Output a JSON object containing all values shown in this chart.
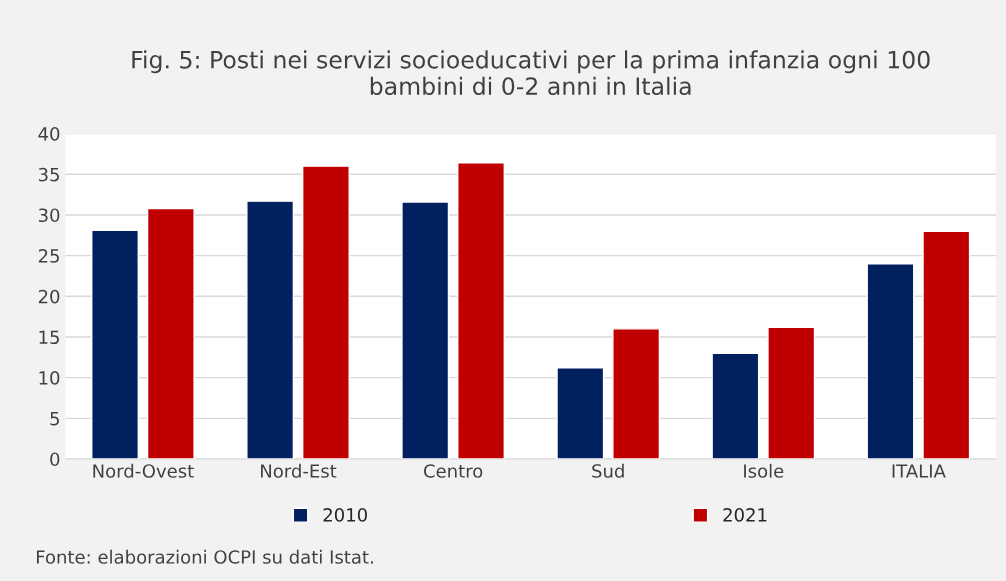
{
  "chart_data": {
    "type": "bar",
    "title": "Fig. 5: Posti nei servizi socioeducativi per la prima infanzia ogni 100\nbambini di 0-2 anni in Italia",
    "categories": [
      "Nord-Ovest",
      "Nord-Est",
      "Centro",
      "Sud",
      "Isole",
      "ITALIA"
    ],
    "series": [
      {
        "name": "2010",
        "color": "#002060",
        "values": [
          28.1,
          31.7,
          31.6,
          11.2,
          13.0,
          24.0
        ]
      },
      {
        "name": "2021",
        "color": "#c00000",
        "values": [
          30.8,
          36.0,
          36.4,
          16.0,
          16.2,
          28.0
        ]
      }
    ],
    "ylim": [
      0,
      40
    ],
    "yticks": [
      0,
      5,
      10,
      15,
      20,
      25,
      30,
      35,
      40
    ],
    "grid": "y",
    "legend": "bottom",
    "annotations": [
      "Fonte: elaborazioni OCPI su dati Istat."
    ]
  }
}
